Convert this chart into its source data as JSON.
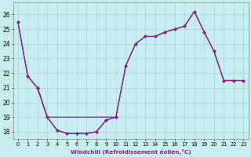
{
  "xlabel": "Windchill (Refroidissement éolien,°C)",
  "bg_color": "#c8eef0",
  "line_color": "#882288",
  "grid_color": "#aadddd",
  "xlim": [
    -0.5,
    23.5
  ],
  "ylim": [
    17.5,
    26.8
  ],
  "yticks": [
    18,
    19,
    20,
    21,
    22,
    23,
    24,
    25,
    26
  ],
  "series": [
    {
      "x": [
        0,
        1,
        2,
        3,
        4,
        5,
        6,
        7,
        8,
        9,
        10
      ],
      "y": [
        25.5,
        21.8,
        21.0,
        19.0,
        18.1,
        17.9,
        17.9,
        17.9,
        18.0,
        18.8,
        19.0
      ]
    },
    {
      "x": [
        2,
        3,
        4,
        5,
        6,
        7,
        8,
        9,
        10,
        11,
        12,
        13,
        14,
        15,
        16,
        17,
        18,
        19,
        20,
        21,
        22,
        23
      ],
      "y": [
        21.0,
        19.0,
        18.1,
        17.9,
        17.9,
        17.9,
        18.0,
        18.8,
        19.0,
        22.5,
        24.0,
        24.5,
        24.5,
        24.8,
        25.0,
        25.2,
        26.2,
        24.8,
        23.5,
        21.5,
        21.5,
        21.5
      ]
    },
    {
      "x": [
        0,
        1,
        2,
        3,
        10,
        11,
        12,
        13,
        14,
        15,
        16,
        17,
        18,
        19,
        20,
        21,
        22,
        23
      ],
      "y": [
        25.5,
        21.8,
        21.0,
        19.0,
        19.0,
        22.5,
        24.0,
        24.5,
        24.5,
        24.8,
        25.0,
        25.2,
        26.2,
        24.8,
        23.5,
        21.5,
        21.5,
        21.5
      ]
    }
  ]
}
